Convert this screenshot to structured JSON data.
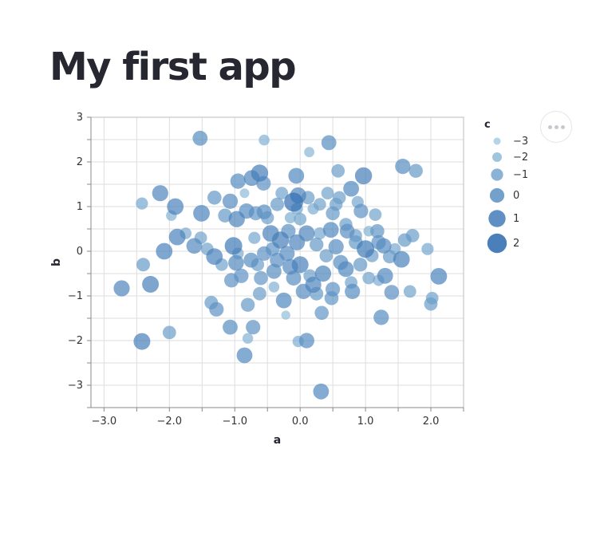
{
  "app": {
    "title": "My first app"
  },
  "chart_data": {
    "type": "scatter",
    "title": "",
    "xlabel": "a",
    "ylabel": "b",
    "xlim": [
      -3.2,
      2.5
    ],
    "ylim": [
      -3.5,
      3
    ],
    "x_ticks": [
      -3.0,
      -2.0,
      -1.0,
      0.0,
      1.0,
      2.0
    ],
    "x_tick_labels": [
      "−3.0",
      "−2.0",
      "−1.0",
      "0.0",
      "1.0",
      "2.0"
    ],
    "y_ticks": [
      3,
      2,
      1,
      0,
      -1,
      -2,
      -3
    ],
    "y_tick_labels": [
      "3",
      "2",
      "1",
      "0",
      "−1",
      "−2",
      "−3"
    ],
    "grid": true,
    "size_encoding": "c",
    "color_encoding": "c",
    "color_range": [
      "#a6cee3",
      "#1f5fa8"
    ],
    "legend": {
      "title": "c",
      "placement": "right",
      "entries": [
        {
          "label": "−3",
          "value": -3
        },
        {
          "label": "−2",
          "value": -2
        },
        {
          "label": "−1",
          "value": -1
        },
        {
          "label": "0",
          "value": 0
        },
        {
          "label": "1",
          "value": 1
        },
        {
          "label": "2",
          "value": 2
        }
      ]
    },
    "points": [
      {
        "a": -1.53,
        "b": 2.53,
        "c": 0.2
      },
      {
        "a": -0.55,
        "b": 2.49,
        "c": -1.5
      },
      {
        "a": 0.14,
        "b": 2.22,
        "c": -1.8
      },
      {
        "a": 0.44,
        "b": 2.43,
        "c": 0.2
      },
      {
        "a": -0.95,
        "b": 1.57,
        "c": 0.3
      },
      {
        "a": -0.74,
        "b": 1.64,
        "c": 0.5
      },
      {
        "a": -0.62,
        "b": 1.75,
        "c": 1.0
      },
      {
        "a": -0.56,
        "b": 1.52,
        "c": 0.0
      },
      {
        "a": -0.06,
        "b": 1.69,
        "c": 0.5
      },
      {
        "a": 0.58,
        "b": 1.8,
        "c": -0.5
      },
      {
        "a": 0.97,
        "b": 1.69,
        "c": 1.0
      },
      {
        "a": 1.57,
        "b": 1.9,
        "c": 0.3
      },
      {
        "a": 1.77,
        "b": 1.8,
        "c": -0.3
      },
      {
        "a": -2.42,
        "b": 1.07,
        "c": -1.0
      },
      {
        "a": -2.14,
        "b": 1.3,
        "c": 0.6
      },
      {
        "a": -1.91,
        "b": 1.0,
        "c": 0.8
      },
      {
        "a": -1.51,
        "b": 0.85,
        "c": 0.8
      },
      {
        "a": -1.31,
        "b": 1.2,
        "c": -0.2
      },
      {
        "a": -1.07,
        "b": 1.12,
        "c": 0.3
      },
      {
        "a": -0.97,
        "b": 0.72,
        "c": 0.7
      },
      {
        "a": -0.82,
        "b": 0.9,
        "c": 0.3
      },
      {
        "a": -0.68,
        "b": 0.85,
        "c": -0.2
      },
      {
        "a": -0.55,
        "b": 0.88,
        "c": 0.1
      },
      {
        "a": -0.35,
        "b": 1.05,
        "c": -0.4
      },
      {
        "a": -0.1,
        "b": 1.1,
        "c": 1.8
      },
      {
        "a": -0.03,
        "b": 1.25,
        "c": 0.6
      },
      {
        "a": 0.12,
        "b": 1.2,
        "c": -0.5
      },
      {
        "a": 0.3,
        "b": 1.05,
        "c": -0.8
      },
      {
        "a": 0.42,
        "b": 1.3,
        "c": -0.8
      },
      {
        "a": 0.6,
        "b": 1.2,
        "c": -0.6
      },
      {
        "a": 0.78,
        "b": 1.4,
        "c": 0.5
      },
      {
        "a": 0.93,
        "b": 0.9,
        "c": 0.0
      },
      {
        "a": 1.15,
        "b": 0.82,
        "c": -0.8
      },
      {
        "a": -1.97,
        "b": 0.8,
        "c": -1.6
      },
      {
        "a": -1.88,
        "b": 0.32,
        "c": 0.8
      },
      {
        "a": -1.62,
        "b": 0.12,
        "c": 0.4
      },
      {
        "a": -2.08,
        "b": 0.0,
        "c": 0.8
      },
      {
        "a": -1.52,
        "b": 0.3,
        "c": -0.8
      },
      {
        "a": -1.31,
        "b": -0.12,
        "c": 0.8
      },
      {
        "a": -1.02,
        "b": 0.12,
        "c": 1.2
      },
      {
        "a": -0.98,
        "b": -0.26,
        "c": 0.4
      },
      {
        "a": -0.75,
        "b": -0.2,
        "c": 0.2
      },
      {
        "a": -0.55,
        "b": -0.05,
        "c": 0.0
      },
      {
        "a": -0.45,
        "b": 0.4,
        "c": 0.8
      },
      {
        "a": -0.3,
        "b": 0.25,
        "c": 1.0
      },
      {
        "a": -0.18,
        "b": 0.45,
        "c": 0.0
      },
      {
        "a": -0.05,
        "b": 0.2,
        "c": 0.6
      },
      {
        "a": 0.1,
        "b": 0.4,
        "c": 0.6
      },
      {
        "a": 0.25,
        "b": 0.15,
        "c": -0.3
      },
      {
        "a": 0.47,
        "b": 0.48,
        "c": 0.5
      },
      {
        "a": 0.55,
        "b": 0.1,
        "c": 0.3
      },
      {
        "a": 0.72,
        "b": 0.45,
        "c": 0.1
      },
      {
        "a": 0.85,
        "b": 0.2,
        "c": -0.3
      },
      {
        "a": 1.0,
        "b": 0.05,
        "c": 1.2
      },
      {
        "a": 1.18,
        "b": 0.45,
        "c": -0.2
      },
      {
        "a": 1.28,
        "b": 0.12,
        "c": 0.3
      },
      {
        "a": 1.37,
        "b": -0.12,
        "c": -0.4
      },
      {
        "a": 1.55,
        "b": -0.18,
        "c": 0.8
      },
      {
        "a": 1.72,
        "b": 0.35,
        "c": -0.5
      },
      {
        "a": 1.95,
        "b": 0.05,
        "c": -1.0
      },
      {
        "a": -2.73,
        "b": -0.83,
        "c": 0.6
      },
      {
        "a": -2.4,
        "b": -0.3,
        "c": -0.4
      },
      {
        "a": -2.29,
        "b": -0.74,
        "c": 0.9
      },
      {
        "a": -1.36,
        "b": -1.15,
        "c": -0.4
      },
      {
        "a": -1.28,
        "b": -1.3,
        "c": 0.0
      },
      {
        "a": -1.05,
        "b": -0.65,
        "c": 0.0
      },
      {
        "a": -0.8,
        "b": -1.2,
        "c": -0.3
      },
      {
        "a": -0.6,
        "b": -0.6,
        "c": -0.2
      },
      {
        "a": -0.4,
        "b": -0.45,
        "c": 0.2
      },
      {
        "a": -0.25,
        "b": -1.1,
        "c": 0.5
      },
      {
        "a": -0.1,
        "b": -0.6,
        "c": 0.2
      },
      {
        "a": 0.05,
        "b": -0.9,
        "c": 0.3
      },
      {
        "a": 0.2,
        "b": -0.75,
        "c": 0.6
      },
      {
        "a": 0.35,
        "b": -0.5,
        "c": 0.7
      },
      {
        "a": 0.5,
        "b": -0.85,
        "c": 0.0
      },
      {
        "a": 0.7,
        "b": -0.4,
        "c": 0.5
      },
      {
        "a": 0.8,
        "b": -0.9,
        "c": 0.3
      },
      {
        "a": 1.05,
        "b": -0.6,
        "c": -0.8
      },
      {
        "a": 1.3,
        "b": -0.55,
        "c": 0.5
      },
      {
        "a": 1.4,
        "b": -0.92,
        "c": 0.1
      },
      {
        "a": 1.68,
        "b": -0.9,
        "c": -0.8
      },
      {
        "a": 2.0,
        "b": -1.18,
        "c": -0.5
      },
      {
        "a": 2.02,
        "b": -1.05,
        "c": -0.8
      },
      {
        "a": 2.12,
        "b": -0.56,
        "c": 0.8
      },
      {
        "a": -2.42,
        "b": -2.02,
        "c": 0.9
      },
      {
        "a": -2.0,
        "b": -1.82,
        "c": -0.5
      },
      {
        "a": -1.07,
        "b": -1.7,
        "c": 0.2
      },
      {
        "a": -0.8,
        "b": -1.95,
        "c": -1.6
      },
      {
        "a": -0.72,
        "b": -1.7,
        "c": 0.0
      },
      {
        "a": -0.85,
        "b": -2.33,
        "c": 0.5
      },
      {
        "a": -0.22,
        "b": -1.43,
        "c": -2.2
      },
      {
        "a": -0.03,
        "b": -2.02,
        "c": -1.3
      },
      {
        "a": 0.1,
        "b": -2.0,
        "c": 0.3
      },
      {
        "a": 0.33,
        "b": -1.38,
        "c": -0.2
      },
      {
        "a": 0.32,
        "b": -3.14,
        "c": 0.5
      },
      {
        "a": 1.24,
        "b": -1.48,
        "c": 0.3
      },
      {
        "a": -1.15,
        "b": 0.8,
        "c": -0.3
      },
      {
        "a": -0.85,
        "b": 1.3,
        "c": -2.0
      },
      {
        "a": -0.5,
        "b": 0.75,
        "c": -0.6
      },
      {
        "a": 0.0,
        "b": 0.72,
        "c": -0.8
      },
      {
        "a": 0.2,
        "b": 0.95,
        "c": -1.3
      },
      {
        "a": 0.5,
        "b": 0.85,
        "c": -0.3
      },
      {
        "a": 0.7,
        "b": 0.6,
        "c": -0.6
      },
      {
        "a": 0.88,
        "b": 1.1,
        "c": -1.0
      },
      {
        "a": -1.42,
        "b": 0.05,
        "c": -0.8
      },
      {
        "a": -1.2,
        "b": -0.3,
        "c": -0.8
      },
      {
        "a": -0.9,
        "b": -0.55,
        "c": 0.0
      },
      {
        "a": -0.65,
        "b": -0.3,
        "c": -0.6
      },
      {
        "a": -0.35,
        "b": -0.2,
        "c": 0.1
      },
      {
        "a": -0.15,
        "b": -0.35,
        "c": 0.4
      },
      {
        "a": 0.0,
        "b": -0.3,
        "c": 0.9
      },
      {
        "a": 0.15,
        "b": -0.55,
        "c": -0.6
      },
      {
        "a": 0.4,
        "b": -0.1,
        "c": -0.5
      },
      {
        "a": 0.62,
        "b": -0.25,
        "c": 0.2
      },
      {
        "a": 0.92,
        "b": -0.3,
        "c": -0.3
      },
      {
        "a": 1.1,
        "b": -0.1,
        "c": -0.6
      },
      {
        "a": 1.45,
        "b": 0.05,
        "c": -1.2
      },
      {
        "a": 1.6,
        "b": 0.25,
        "c": -0.4
      },
      {
        "a": 1.2,
        "b": 0.2,
        "c": 0.0
      },
      {
        "a": -0.7,
        "b": 0.3,
        "c": -1.0
      },
      {
        "a": -0.42,
        "b": 0.05,
        "c": -0.2
      },
      {
        "a": -0.2,
        "b": -0.05,
        "c": 0.3
      },
      {
        "a": 0.3,
        "b": 0.4,
        "c": -1.0
      },
      {
        "a": 0.85,
        "b": 0.35,
        "c": -0.7
      },
      {
        "a": -0.95,
        "b": -0.05,
        "c": -1.2
      },
      {
        "a": -0.62,
        "b": -0.95,
        "c": -0.5
      },
      {
        "a": -0.4,
        "b": -0.8,
        "c": -1.5
      },
      {
        "a": 0.25,
        "b": -0.95,
        "c": -0.4
      },
      {
        "a": 0.48,
        "b": -1.05,
        "c": -0.2
      },
      {
        "a": 0.78,
        "b": -0.7,
        "c": -0.8
      },
      {
        "a": 1.2,
        "b": -0.65,
        "c": -1.3
      },
      {
        "a": -0.28,
        "b": 1.3,
        "c": -0.8
      },
      {
        "a": 0.55,
        "b": 1.05,
        "c": -0.6
      },
      {
        "a": -1.75,
        "b": 0.4,
        "c": -1.2
      },
      {
        "a": -0.15,
        "b": 0.75,
        "c": -1.4
      },
      {
        "a": 1.05,
        "b": 0.45,
        "c": -1.6
      },
      {
        "a": -0.05,
        "b": 0.95,
        "c": -1.0
      }
    ]
  }
}
